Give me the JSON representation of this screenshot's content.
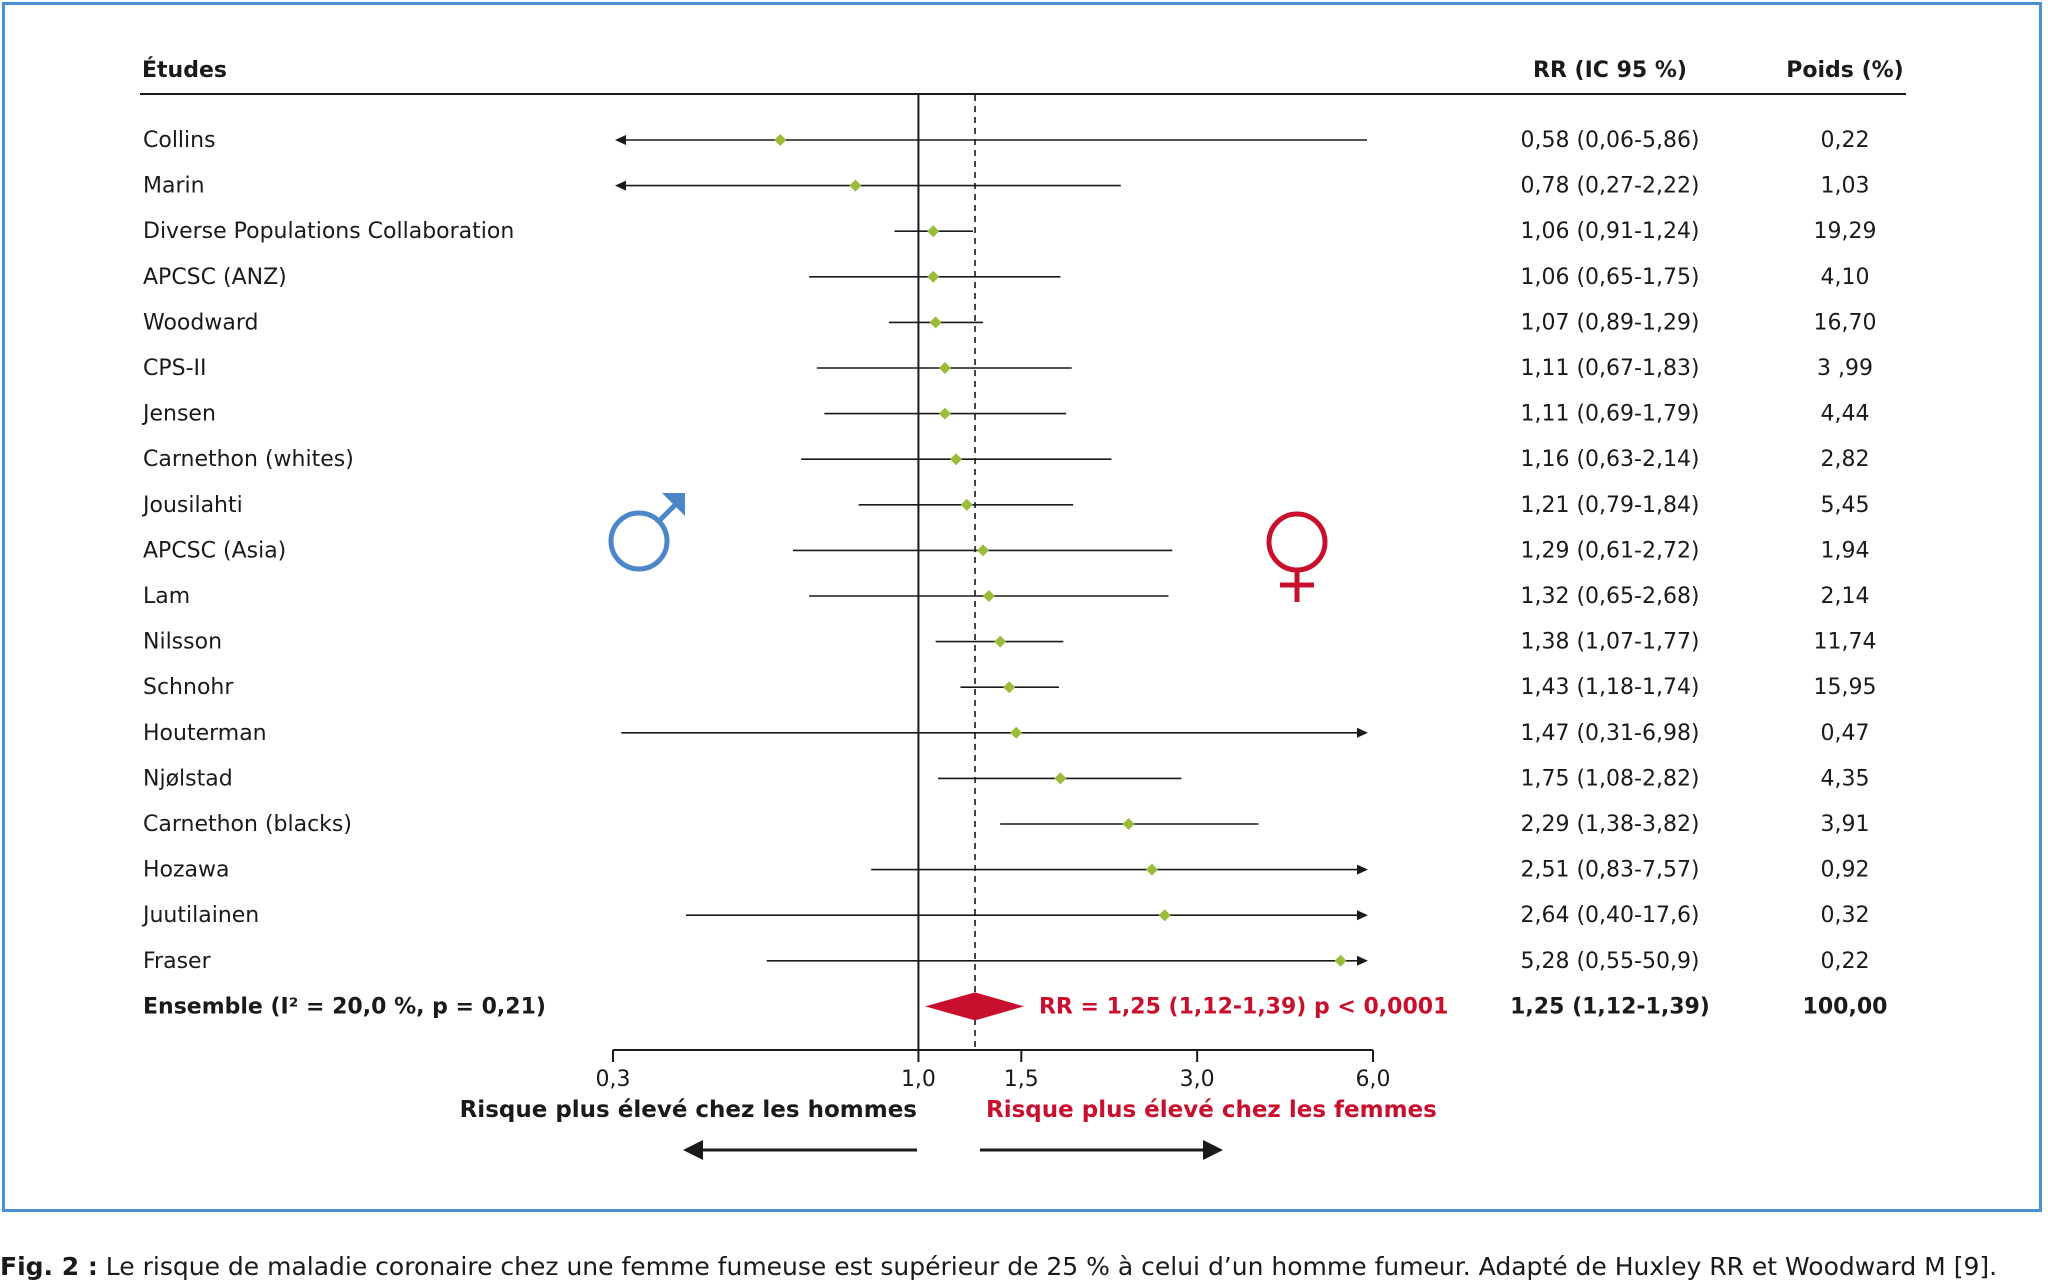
{
  "chart_data": {
    "type": "forest",
    "columns": {
      "study": "Études",
      "rr": "RR (IC 95 %)",
      "weight": "Poids (%)"
    },
    "studies": [
      {
        "name": "Collins",
        "rr": 0.58,
        "lo": 0.06,
        "hi": 5.86,
        "rr_text": "0,58 (0,06-5,86)",
        "weight": "0,22"
      },
      {
        "name": "Marin",
        "rr": 0.78,
        "lo": 0.27,
        "hi": 2.22,
        "rr_text": "0,78 (0,27-2,22)",
        "weight": "1,03"
      },
      {
        "name": "Diverse Populations Collaboration",
        "rr": 1.06,
        "lo": 0.91,
        "hi": 1.24,
        "rr_text": "1,06 (0,91-1,24)",
        "weight": "19,29"
      },
      {
        "name": "APCSC (ANZ)",
        "rr": 1.06,
        "lo": 0.65,
        "hi": 1.75,
        "rr_text": "1,06 (0,65-1,75)",
        "weight": "4,10"
      },
      {
        "name": "Woodward",
        "rr": 1.07,
        "lo": 0.89,
        "hi": 1.29,
        "rr_text": "1,07 (0,89-1,29)",
        "weight": "16,70"
      },
      {
        "name": "CPS-II",
        "rr": 1.11,
        "lo": 0.67,
        "hi": 1.83,
        "rr_text": "1,11 (0,67-1,83)",
        "weight": "3 ,99"
      },
      {
        "name": "Jensen",
        "rr": 1.11,
        "lo": 0.69,
        "hi": 1.79,
        "rr_text": "1,11 (0,69-1,79)",
        "weight": "4,44"
      },
      {
        "name": "Carnethon (whites)",
        "rr": 1.16,
        "lo": 0.63,
        "hi": 2.14,
        "rr_text": "1,16 (0,63-2,14)",
        "weight": "2,82"
      },
      {
        "name": "Jousilahti",
        "rr": 1.21,
        "lo": 0.79,
        "hi": 1.84,
        "rr_text": "1,21 (0,79-1,84)",
        "weight": "5,45"
      },
      {
        "name": "APCSC (Asia)",
        "rr": 1.29,
        "lo": 0.61,
        "hi": 2.72,
        "rr_text": "1,29 (0,61-2,72)",
        "weight": "1,94"
      },
      {
        "name": "Lam",
        "rr": 1.32,
        "lo": 0.65,
        "hi": 2.68,
        "rr_text": "1,32 (0,65-2,68)",
        "weight": "2,14"
      },
      {
        "name": "Nilsson",
        "rr": 1.38,
        "lo": 1.07,
        "hi": 1.77,
        "rr_text": "1,38 (1,07-1,77)",
        "weight": "11,74"
      },
      {
        "name": "Schnohr",
        "rr": 1.43,
        "lo": 1.18,
        "hi": 1.74,
        "rr_text": "1,43 (1,18-1,74)",
        "weight": "15,95"
      },
      {
        "name": "Houterman",
        "rr": 1.47,
        "lo": 0.31,
        "hi": 6.98,
        "rr_text": "1,47 (0,31-6,98)",
        "weight": "0,47"
      },
      {
        "name": "Njølstad",
        "rr": 1.75,
        "lo": 1.08,
        "hi": 2.82,
        "rr_text": "1,75 (1,08-2,82)",
        "weight": "4,35"
      },
      {
        "name": "Carnethon (blacks)",
        "rr": 2.29,
        "lo": 1.38,
        "hi": 3.82,
        "rr_text": "2,29 (1,38-3,82)",
        "weight": "3,91"
      },
      {
        "name": "Hozawa",
        "rr": 2.51,
        "lo": 0.83,
        "hi": 7.57,
        "rr_text": "2,51 (0,83-7,57)",
        "weight": "0,92"
      },
      {
        "name": "Juutilainen",
        "rr": 2.64,
        "lo": 0.4,
        "hi": 17.6,
        "rr_text": "2,64 (0,40-17,6)",
        "weight": "0,32"
      },
      {
        "name": "Fraser",
        "rr": 5.28,
        "lo": 0.55,
        "hi": 50.9,
        "rr_text": "5,28 (0,55-50,9)",
        "weight": "0,22"
      }
    ],
    "overall": {
      "name": "Ensemble (I² = 20,0 %, p = 0,21)",
      "rr": 1.25,
      "lo": 1.12,
      "hi": 1.39,
      "label": "RR = 1,25 (1,12-1,39) p < 0,0001",
      "rr_text": "1,25 (1,12-1,39)",
      "weight": "100,00"
    },
    "x_scale": "log",
    "xlim": [
      0.3,
      6.0
    ],
    "x_ticks": [
      {
        "value": 0.3,
        "label": "0,3"
      },
      {
        "value": 1.0,
        "label": "1,0"
      },
      {
        "value": 1.5,
        "label": "1,5"
      },
      {
        "value": 3.0,
        "label": "3,0"
      },
      {
        "value": 6.0,
        "label": "6,0"
      }
    ],
    "reference_line": 1.0,
    "pooled_line": 1.25,
    "direction_labels": {
      "left": "Risque plus élevé chez les hommes",
      "right": "Risque plus élevé chez les femmes"
    },
    "colors": {
      "point": "#9bbb3b",
      "pooled": "#c8102e",
      "male_symbol": "#4a86c8",
      "female_symbol": "#c8102e",
      "frame": "#4a90d9"
    },
    "symbols": {
      "male": "male-symbol-icon",
      "female": "female-symbol-icon"
    }
  },
  "caption": {
    "prefix": "Fig. 2 :",
    "text": " Le risque de maladie coronaire chez une femme fumeuse est supérieur de 25 % à celui d’un homme fumeur. Adapté de Huxley RR et Woodward M [9]."
  }
}
